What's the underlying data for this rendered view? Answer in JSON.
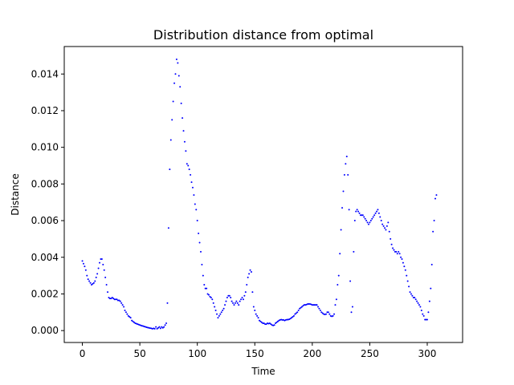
{
  "chart_data": {
    "type": "scatter",
    "title": "Distribution distance from optimal",
    "xlabel": "Time",
    "ylabel": "Distance",
    "xlim": [
      -15.75,
      330.75
    ],
    "ylim": [
      -0.00065,
      0.0155
    ],
    "xticks": [
      0,
      50,
      100,
      150,
      200,
      250,
      300
    ],
    "xtick_labels": [
      "0",
      "50",
      "100",
      "150",
      "200",
      "250",
      "300"
    ],
    "yticks": [
      0.0,
      0.002,
      0.004,
      0.006,
      0.008,
      0.01,
      0.012,
      0.014
    ],
    "ytick_labels": [
      "0.000",
      "0.002",
      "0.004",
      "0.006",
      "0.008",
      "0.010",
      "0.012",
      "0.014"
    ],
    "grid": false,
    "series": [
      {
        "color": "#0000ff",
        "marker": "point",
        "points": [
          [
            0,
            0.0038
          ],
          [
            1,
            0.00365
          ],
          [
            2,
            0.0035
          ],
          [
            3,
            0.0033
          ],
          [
            4,
            0.003
          ],
          [
            5,
            0.0028
          ],
          [
            6,
            0.0027
          ],
          [
            7,
            0.0026
          ],
          [
            8,
            0.0025
          ],
          [
            9,
            0.00255
          ],
          [
            10,
            0.0026
          ],
          [
            11,
            0.0027
          ],
          [
            12,
            0.0029
          ],
          [
            13,
            0.0031
          ],
          [
            14,
            0.0034
          ],
          [
            15,
            0.0037
          ],
          [
            16,
            0.0039
          ],
          [
            17,
            0.0039
          ],
          [
            18,
            0.0036
          ],
          [
            19,
            0.0033
          ],
          [
            20,
            0.0029
          ],
          [
            21,
            0.0025
          ],
          [
            22,
            0.0021
          ],
          [
            23,
            0.0018
          ],
          [
            24,
            0.00175
          ],
          [
            25,
            0.00175
          ],
          [
            26,
            0.0018
          ],
          [
            27,
            0.00175
          ],
          [
            28,
            0.0017
          ],
          [
            29,
            0.0017
          ],
          [
            30,
            0.0017
          ],
          [
            31,
            0.00165
          ],
          [
            32,
            0.00165
          ],
          [
            33,
            0.0016
          ],
          [
            34,
            0.0015
          ],
          [
            35,
            0.0014
          ],
          [
            36,
            0.0013
          ],
          [
            37,
            0.0011
          ],
          [
            38,
            0.001
          ],
          [
            39,
            0.0009
          ],
          [
            40,
            0.0008
          ],
          [
            41,
            0.00075
          ],
          [
            42,
            0.0007
          ],
          [
            43,
            0.00055
          ],
          [
            44,
            0.0005
          ],
          [
            45,
            0.00045
          ],
          [
            46,
            0.0004
          ],
          [
            47,
            0.00038
          ],
          [
            48,
            0.00035
          ],
          [
            49,
            0.00033
          ],
          [
            50,
            0.0003
          ],
          [
            51,
            0.00028
          ],
          [
            52,
            0.00026
          ],
          [
            53,
            0.00024
          ],
          [
            54,
            0.00022
          ],
          [
            55,
            0.0002
          ],
          [
            56,
            0.00018
          ],
          [
            57,
            0.00016
          ],
          [
            58,
            0.00015
          ],
          [
            59,
            0.00013
          ],
          [
            60,
            0.00012
          ],
          [
            61,
            0.0001
          ],
          [
            62,
            0.00012
          ],
          [
            63,
            0.0001
          ],
          [
            64,
            0.0002
          ],
          [
            65,
            0.0001
          ],
          [
            66,
            0.00015
          ],
          [
            67,
            0.0002
          ],
          [
            68,
            0.00012
          ],
          [
            69,
            0.0002
          ],
          [
            70,
            0.00015
          ],
          [
            71,
            0.0002
          ],
          [
            72,
            0.0003
          ],
          [
            73,
            0.0004
          ],
          [
            74,
            0.0015
          ],
          [
            75,
            0.0056
          ],
          [
            76,
            0.0088
          ],
          [
            77,
            0.0104
          ],
          [
            78,
            0.0115
          ],
          [
            79,
            0.0125
          ],
          [
            80,
            0.0135
          ],
          [
            81,
            0.014
          ],
          [
            82,
            0.0148
          ],
          [
            83,
            0.0146
          ],
          [
            84,
            0.0139
          ],
          [
            85,
            0.0133
          ],
          [
            86,
            0.0124
          ],
          [
            87,
            0.0116
          ],
          [
            88,
            0.0109
          ],
          [
            89,
            0.0103
          ],
          [
            90,
            0.0098
          ],
          [
            91,
            0.0091
          ],
          [
            92,
            0.009
          ],
          [
            93,
            0.0088
          ],
          [
            94,
            0.0085
          ],
          [
            95,
            0.0081
          ],
          [
            96,
            0.0078
          ],
          [
            97,
            0.0074
          ],
          [
            98,
            0.0069
          ],
          [
            99,
            0.0066
          ],
          [
            100,
            0.006
          ],
          [
            101,
            0.0053
          ],
          [
            102,
            0.0048
          ],
          [
            103,
            0.0043
          ],
          [
            104,
            0.0036
          ],
          [
            105,
            0.003
          ],
          [
            106,
            0.0025
          ],
          [
            107,
            0.0023
          ],
          [
            108,
            0.0023
          ],
          [
            109,
            0.002
          ],
          [
            110,
            0.00195
          ],
          [
            111,
            0.00185
          ],
          [
            112,
            0.0018
          ],
          [
            113,
            0.0017
          ],
          [
            114,
            0.0015
          ],
          [
            115,
            0.0013
          ],
          [
            116,
            0.0011
          ],
          [
            117,
            0.0009
          ],
          [
            118,
            0.0007
          ],
          [
            119,
            0.0008
          ],
          [
            120,
            0.0009
          ],
          [
            121,
            0.001
          ],
          [
            122,
            0.0011
          ],
          [
            123,
            0.0012
          ],
          [
            124,
            0.0014
          ],
          [
            125,
            0.0016
          ],
          [
            126,
            0.0018
          ],
          [
            127,
            0.0019
          ],
          [
            128,
            0.0019
          ],
          [
            129,
            0.0018
          ],
          [
            130,
            0.0016
          ],
          [
            131,
            0.0015
          ],
          [
            132,
            0.0014
          ],
          [
            133,
            0.0015
          ],
          [
            134,
            0.0016
          ],
          [
            135,
            0.0015
          ],
          [
            136,
            0.0014
          ],
          [
            137,
            0.0016
          ],
          [
            138,
            0.0017
          ],
          [
            139,
            0.0018
          ],
          [
            140,
            0.0017
          ],
          [
            141,
            0.0019
          ],
          [
            142,
            0.0021
          ],
          [
            143,
            0.0025
          ],
          [
            144,
            0.0029
          ],
          [
            145,
            0.0031
          ],
          [
            146,
            0.0033
          ],
          [
            147,
            0.0032
          ],
          [
            148,
            0.0021
          ],
          [
            149,
            0.0013
          ],
          [
            150,
            0.0011
          ],
          [
            151,
            0.0009
          ],
          [
            152,
            0.0008
          ],
          [
            153,
            0.0007
          ],
          [
            154,
            0.00055
          ],
          [
            155,
            0.0005
          ],
          [
            156,
            0.00045
          ],
          [
            157,
            0.0004
          ],
          [
            158,
            0.0004
          ],
          [
            159,
            0.00035
          ],
          [
            160,
            0.00035
          ],
          [
            161,
            0.0004
          ],
          [
            162,
            0.00038
          ],
          [
            163,
            0.0004
          ],
          [
            164,
            0.00035
          ],
          [
            165,
            0.0003
          ],
          [
            166,
            0.00028
          ],
          [
            167,
            0.0003
          ],
          [
            168,
            0.0004
          ],
          [
            169,
            0.00045
          ],
          [
            170,
            0.0005
          ],
          [
            171,
            0.00055
          ],
          [
            172,
            0.00058
          ],
          [
            173,
            0.0006
          ],
          [
            174,
            0.00058
          ],
          [
            175,
            0.00058
          ],
          [
            176,
            0.00055
          ],
          [
            177,
            0.00058
          ],
          [
            178,
            0.0006
          ],
          [
            179,
            0.0006
          ],
          [
            180,
            0.00062
          ],
          [
            181,
            0.00065
          ],
          [
            182,
            0.0007
          ],
          [
            183,
            0.00075
          ],
          [
            184,
            0.0008
          ],
          [
            185,
            0.0009
          ],
          [
            186,
            0.00095
          ],
          [
            187,
            0.001
          ],
          [
            188,
            0.0011
          ],
          [
            189,
            0.0012
          ],
          [
            190,
            0.00125
          ],
          [
            191,
            0.0013
          ],
          [
            192,
            0.00135
          ],
          [
            193,
            0.0014
          ],
          [
            194,
            0.0014
          ],
          [
            195,
            0.00142
          ],
          [
            196,
            0.00145
          ],
          [
            197,
            0.00145
          ],
          [
            198,
            0.00145
          ],
          [
            199,
            0.00143
          ],
          [
            200,
            0.0014
          ],
          [
            201,
            0.0014
          ],
          [
            202,
            0.0014
          ],
          [
            203,
            0.0014
          ],
          [
            204,
            0.0014
          ],
          [
            205,
            0.0013
          ],
          [
            206,
            0.0012
          ],
          [
            207,
            0.0011
          ],
          [
            208,
            0.001
          ],
          [
            209,
            0.00095
          ],
          [
            210,
            0.0009
          ],
          [
            211,
            0.00088
          ],
          [
            212,
            0.0009
          ],
          [
            213,
            0.001
          ],
          [
            214,
            0.001
          ],
          [
            215,
            0.0009
          ],
          [
            216,
            0.0008
          ],
          [
            217,
            0.00078
          ],
          [
            218,
            0.0008
          ],
          [
            219,
            0.0009
          ],
          [
            220,
            0.0014
          ],
          [
            221,
            0.0017
          ],
          [
            222,
            0.0025
          ],
          [
            223,
            0.003
          ],
          [
            224,
            0.0042
          ],
          [
            225,
            0.0055
          ],
          [
            226,
            0.0067
          ],
          [
            227,
            0.0076
          ],
          [
            228,
            0.0085
          ],
          [
            229,
            0.0091
          ],
          [
            230,
            0.0095
          ],
          [
            231,
            0.0085
          ],
          [
            232,
            0.0066
          ],
          [
            233,
            0.0027
          ],
          [
            234,
            0.001
          ],
          [
            235,
            0.0013
          ],
          [
            236,
            0.0043
          ],
          [
            237,
            0.006
          ],
          [
            238,
            0.0065
          ],
          [
            239,
            0.0066
          ],
          [
            240,
            0.0065
          ],
          [
            241,
            0.0064
          ],
          [
            242,
            0.0063
          ],
          [
            243,
            0.0063
          ],
          [
            244,
            0.0063
          ],
          [
            245,
            0.0062
          ],
          [
            246,
            0.0061
          ],
          [
            247,
            0.006
          ],
          [
            248,
            0.0059
          ],
          [
            249,
            0.0058
          ],
          [
            250,
            0.0059
          ],
          [
            251,
            0.006
          ],
          [
            252,
            0.0061
          ],
          [
            253,
            0.0062
          ],
          [
            254,
            0.0063
          ],
          [
            255,
            0.0064
          ],
          [
            256,
            0.0065
          ],
          [
            257,
            0.0066
          ],
          [
            258,
            0.0064
          ],
          [
            259,
            0.0062
          ],
          [
            260,
            0.006
          ],
          [
            261,
            0.0058
          ],
          [
            262,
            0.0057
          ],
          [
            263,
            0.0056
          ],
          [
            264,
            0.0055
          ],
          [
            265,
            0.0057
          ],
          [
            266,
            0.0059
          ],
          [
            267,
            0.0054
          ],
          [
            268,
            0.005
          ],
          [
            269,
            0.0047
          ],
          [
            270,
            0.0045
          ],
          [
            271,
            0.0044
          ],
          [
            272,
            0.0043
          ],
          [
            273,
            0.0043
          ],
          [
            274,
            0.0042
          ],
          [
            275,
            0.0043
          ],
          [
            276,
            0.0042
          ],
          [
            277,
            0.004
          ],
          [
            278,
            0.0039
          ],
          [
            279,
            0.0037
          ],
          [
            280,
            0.0035
          ],
          [
            281,
            0.0033
          ],
          [
            282,
            0.003
          ],
          [
            283,
            0.0027
          ],
          [
            284,
            0.0024
          ],
          [
            285,
            0.0021
          ],
          [
            286,
            0.002
          ],
          [
            287,
            0.0019
          ],
          [
            288,
            0.0018
          ],
          [
            289,
            0.0018
          ],
          [
            290,
            0.0017
          ],
          [
            291,
            0.0016
          ],
          [
            292,
            0.0015
          ],
          [
            293,
            0.0014
          ],
          [
            294,
            0.0013
          ],
          [
            295,
            0.0011
          ],
          [
            296,
            0.0009
          ],
          [
            297,
            0.0008
          ],
          [
            298,
            0.0006
          ],
          [
            299,
            0.0006
          ],
          [
            300,
            0.0006
          ],
          [
            301,
            0.001
          ],
          [
            302,
            0.0016
          ],
          [
            303,
            0.0023
          ],
          [
            304,
            0.0036
          ],
          [
            305,
            0.0054
          ],
          [
            306,
            0.006
          ],
          [
            307,
            0.0072
          ],
          [
            308,
            0.0074
          ]
        ]
      }
    ]
  }
}
